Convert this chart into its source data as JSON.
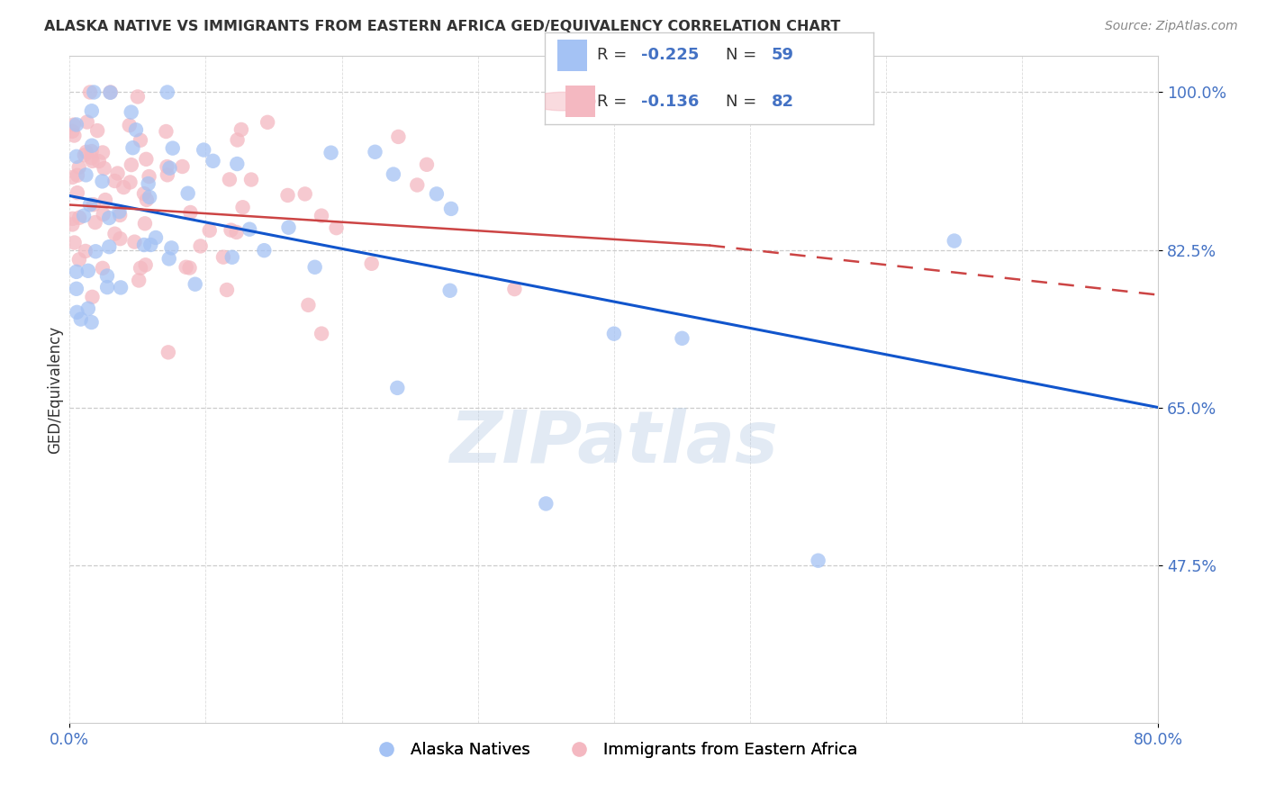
{
  "title": "ALASKA NATIVE VS IMMIGRANTS FROM EASTERN AFRICA GED/EQUIVALENCY CORRELATION CHART",
  "source": "Source: ZipAtlas.com",
  "ylabel": "GED/Equivalency",
  "legend_label1": "Alaska Natives",
  "legend_label2": "Immigrants from Eastern Africa",
  "R1": -0.225,
  "N1": 59,
  "R2": -0.136,
  "N2": 82,
  "color_blue": "#a4c2f4",
  "color_pink": "#f4b8c1",
  "color_blue_line": "#1155cc",
  "color_pink_line": "#cc4444",
  "xmin": 0.0,
  "xmax": 80.0,
  "ymin": 30.0,
  "ymax": 104.0,
  "yticks": [
    47.5,
    65.0,
    82.5,
    100.0
  ],
  "ytick_labels": [
    "47.5%",
    "65.0%",
    "82.5%",
    "100.0%"
  ],
  "xticks": [
    0.0,
    80.0
  ],
  "xtick_labels": [
    "0.0%",
    "80.0%"
  ],
  "watermark": "ZIPatlas",
  "background_color": "#ffffff",
  "blue_line_y0": 88.5,
  "blue_line_y1": 65.0,
  "pink_line_y0": 87.5,
  "pink_line_y1_solid": 83.0,
  "pink_line_x_solid": 47.0,
  "pink_line_y1_dash": 77.5
}
